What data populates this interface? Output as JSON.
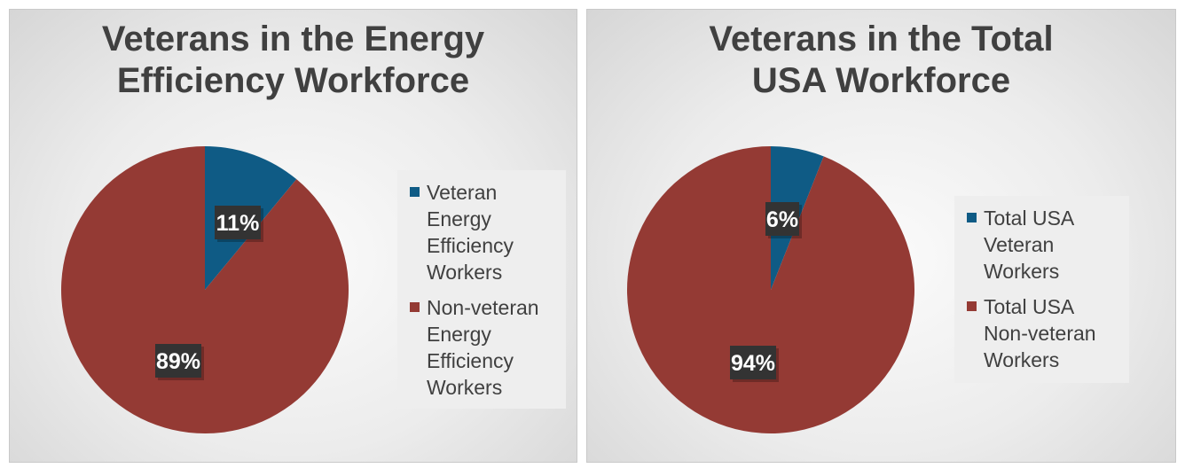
{
  "colors": {
    "veteran": "#0f5b85",
    "nonveteran": "#943a34",
    "label_bg": "#333333",
    "label_text": "#ffffff"
  },
  "chart_data": [
    {
      "type": "pie",
      "title": "Veterans in the Energy\nEfficiency Workforce",
      "slices": [
        {
          "label": "Veteran\nEnergy\nEfficiency\nWorkers",
          "value": 11,
          "display": "11%",
          "color": "#0f5b85"
        },
        {
          "label": "Non-veteran\nEnergy\nEfficiency\nWorkers",
          "value": 89,
          "display": "89%",
          "color": "#943a34"
        }
      ],
      "legend": "right"
    },
    {
      "type": "pie",
      "title": "Veterans in the Total\nUSA Workforce",
      "slices": [
        {
          "label": "Total USA\nVeteran\nWorkers",
          "value": 6,
          "display": "6%",
          "color": "#0f5b85"
        },
        {
          "label": "Total USA\nNon-veteran\nWorkers",
          "value": 94,
          "display": "94%",
          "color": "#943a34"
        }
      ],
      "legend": "right"
    }
  ]
}
